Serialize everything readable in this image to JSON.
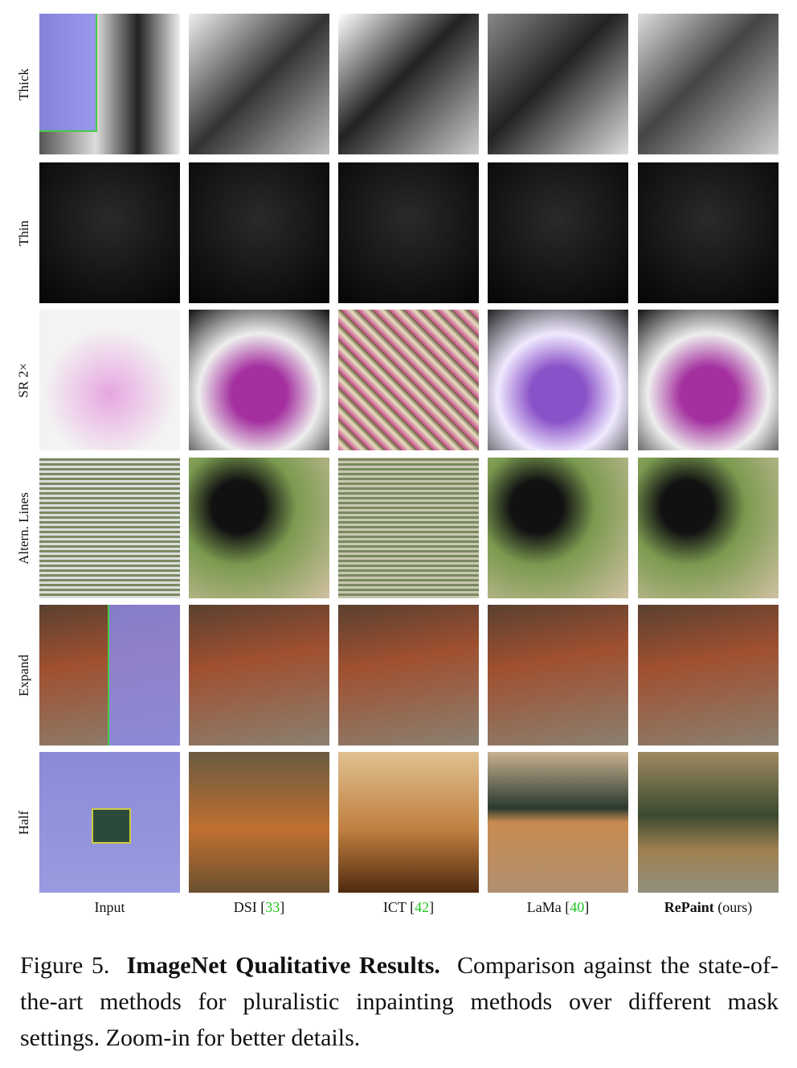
{
  "figure": {
    "rows": [
      "Thick",
      "Thin",
      "SR 2×",
      "Altern. Lines",
      "Expand",
      "Half"
    ],
    "columns": [
      {
        "name": "Input"
      },
      {
        "name": "DSI [",
        "ref": "33",
        "close": "]"
      },
      {
        "name": "ICT [",
        "ref": "42",
        "close": "]"
      },
      {
        "name": "LaMa [",
        "ref": "40",
        "close": "]"
      },
      {
        "name": "RePaint",
        "note": " (ours)"
      }
    ],
    "caption": {
      "label": "Figure 5.",
      "title": "ImageNet Qualitative Results.",
      "text": "Comparison against the state-of-the-art methods for pluralistic inpainting methods over different mask settings. Zoom-in for better details."
    }
  }
}
